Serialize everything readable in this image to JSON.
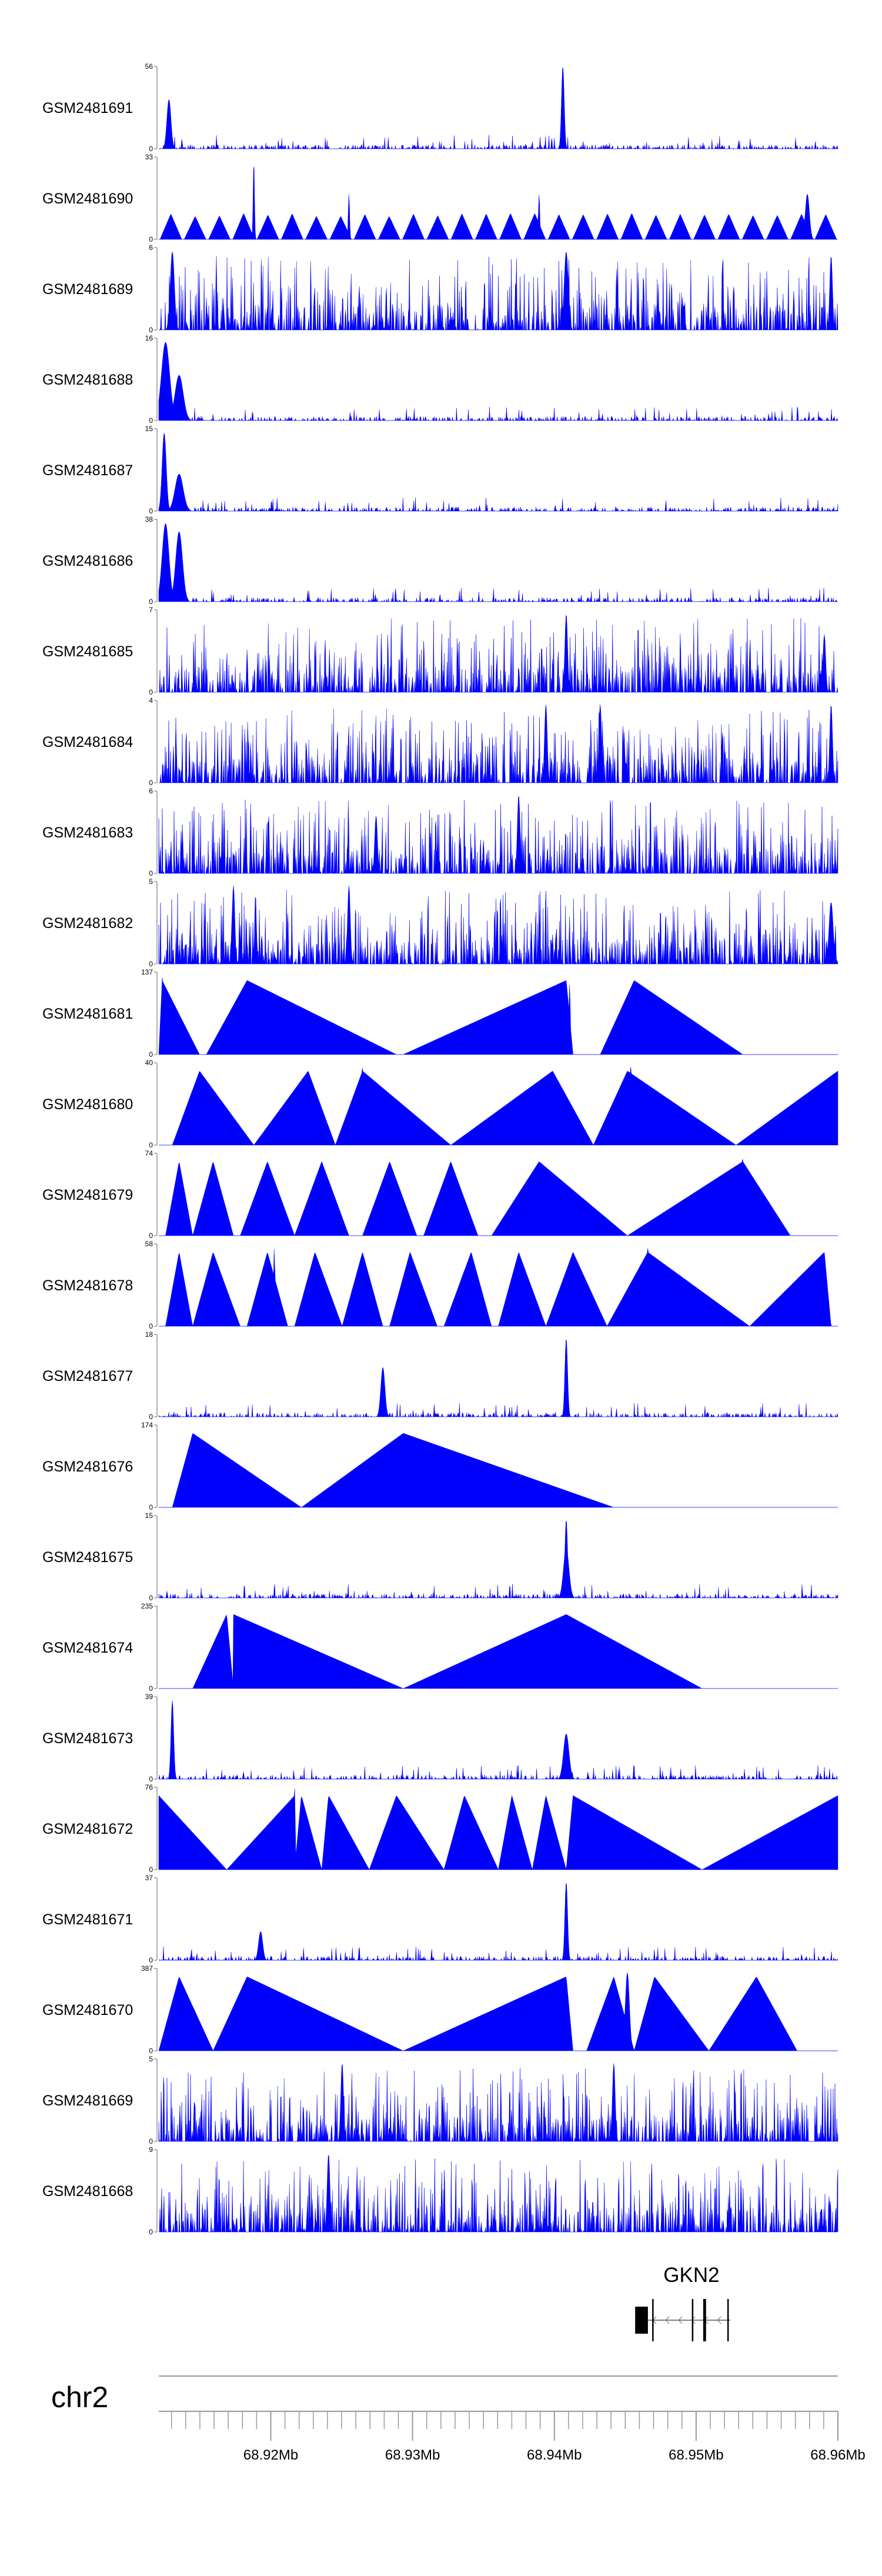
{
  "chart_data": {
    "type": "area",
    "title": "",
    "xlabel": "",
    "ylabel": "",
    "chromosome": "chr2",
    "xlim_mb": [
      68.9121,
      68.96
    ],
    "x_ticks": [
      {
        "value": 68.92,
        "label": "68.92Mb"
      },
      {
        "value": 68.93,
        "label": "68.93Mb"
      },
      {
        "value": 68.94,
        "label": "68.94Mb"
      },
      {
        "value": 68.95,
        "label": "68.95Mb"
      },
      {
        "value": 68.96,
        "label": "68.96Mb"
      }
    ],
    "colors": {
      "fill": "#0000ff",
      "axis": "#999999",
      "text": "#000000"
    },
    "series": [
      {
        "name": "GSM2481691",
        "max": 56,
        "pattern": "noise",
        "peaks": [
          [
            0.015,
            0.6,
            0.003
          ],
          [
            0.595,
            1.0,
            0.002
          ]
        ]
      },
      {
        "name": "GSM2481690",
        "max": 33,
        "pattern": "sparse",
        "peaks": [
          [
            0.14,
            0.95,
            0.001
          ],
          [
            0.28,
            0.55,
            0.001
          ],
          [
            0.56,
            0.55,
            0.001
          ],
          [
            0.955,
            0.55,
            0.003
          ]
        ]
      },
      {
        "name": "GSM2481689",
        "max": 6,
        "pattern": "dense",
        "peaks": [
          [
            0.02,
            0.95,
            0.003
          ],
          [
            0.6,
            0.95,
            0.003
          ],
          [
            0.99,
            0.9,
            0.002
          ]
        ]
      },
      {
        "name": "GSM2481688",
        "max": 16,
        "pattern": "noise",
        "peaks": [
          [
            0.01,
            0.95,
            0.006
          ],
          [
            0.03,
            0.55,
            0.006
          ]
        ]
      },
      {
        "name": "GSM2481687",
        "max": 15,
        "pattern": "noise",
        "peaks": [
          [
            0.008,
            0.95,
            0.003
          ],
          [
            0.03,
            0.45,
            0.006
          ]
        ]
      },
      {
        "name": "GSM2481686",
        "max": 38,
        "pattern": "noise",
        "peaks": [
          [
            0.01,
            0.95,
            0.005
          ],
          [
            0.03,
            0.85,
            0.005
          ]
        ]
      },
      {
        "name": "GSM2481685",
        "max": 7,
        "pattern": "dense",
        "peaks": [
          [
            0.6,
            0.95,
            0.002
          ],
          [
            0.98,
            0.7,
            0.002
          ]
        ]
      },
      {
        "name": "GSM2481684",
        "max": 4,
        "pattern": "dense",
        "peaks": [
          [
            0.57,
            0.95,
            0.002
          ],
          [
            0.65,
            0.95,
            0.002
          ],
          [
            0.99,
            0.95,
            0.002
          ]
        ]
      },
      {
        "name": "GSM2481683",
        "max": 6,
        "pattern": "dense",
        "peaks": [
          [
            0.53,
            0.95,
            0.002
          ],
          [
            0.32,
            0.7,
            0.002
          ]
        ]
      },
      {
        "name": "GSM2481682",
        "max": 5,
        "pattern": "dense",
        "peaks": [
          [
            0.11,
            0.95,
            0.002
          ],
          [
            0.28,
            0.95,
            0.002
          ],
          [
            0.99,
            0.75,
            0.003
          ]
        ]
      },
      {
        "name": "GSM2481681",
        "max": 137,
        "pattern": "triangles",
        "tri": [
          [
            0.0,
            0.005,
            0.06
          ],
          [
            0.07,
            0.13,
            0.35
          ],
          [
            0.36,
            0.6,
            0.61
          ],
          [
            0.65,
            0.7,
            0.86
          ]
        ],
        "peaks": [
          [
            0.605,
            0.85,
            0.001
          ],
          [
            0.13,
            0.55,
            0.001
          ],
          [
            0.005,
            0.95,
            0.001
          ]
        ]
      },
      {
        "name": "GSM2481680",
        "max": 40,
        "pattern": "triangles",
        "tri": [
          [
            0.02,
            0.06,
            0.14
          ],
          [
            0.14,
            0.22,
            0.26
          ],
          [
            0.26,
            0.3,
            0.43
          ],
          [
            0.43,
            0.58,
            0.64
          ],
          [
            0.64,
            0.69,
            0.85
          ],
          [
            0.85,
            1.0,
            1.0
          ]
        ],
        "peaks": [
          [
            0.695,
            0.95,
            0.001
          ],
          [
            0.3,
            0.95,
            0.001
          ]
        ]
      },
      {
        "name": "GSM2481679",
        "max": 74,
        "pattern": "triangles",
        "tri": [
          [
            0.01,
            0.03,
            0.05
          ],
          [
            0.05,
            0.08,
            0.11
          ],
          [
            0.12,
            0.16,
            0.2
          ],
          [
            0.2,
            0.24,
            0.28
          ],
          [
            0.3,
            0.34,
            0.38
          ],
          [
            0.39,
            0.43,
            0.47
          ],
          [
            0.49,
            0.56,
            0.69
          ],
          [
            0.69,
            0.86,
            0.93
          ]
        ],
        "peaks": [
          [
            0.24,
            0.55,
            0.001
          ],
          [
            0.86,
            1.0,
            0.001
          ]
        ]
      },
      {
        "name": "GSM2481678",
        "max": 58,
        "pattern": "triangles",
        "tri": [
          [
            0.01,
            0.03,
            0.05
          ],
          [
            0.05,
            0.08,
            0.12
          ],
          [
            0.13,
            0.16,
            0.19
          ],
          [
            0.2,
            0.23,
            0.27
          ],
          [
            0.27,
            0.3,
            0.33
          ],
          [
            0.34,
            0.37,
            0.41
          ],
          [
            0.42,
            0.46,
            0.49
          ],
          [
            0.5,
            0.53,
            0.57
          ],
          [
            0.57,
            0.61,
            0.66
          ],
          [
            0.66,
            0.72,
            0.87
          ],
          [
            0.87,
            0.98,
            0.99
          ]
        ],
        "peaks": [
          [
            0.17,
            0.95,
            0.001
          ],
          [
            0.72,
            0.95,
            0.001
          ]
        ]
      },
      {
        "name": "GSM2481677",
        "max": 18,
        "pattern": "noise",
        "peaks": [
          [
            0.33,
            0.6,
            0.003
          ],
          [
            0.6,
            0.95,
            0.002
          ]
        ]
      },
      {
        "name": "GSM2481676",
        "max": 174,
        "pattern": "triangles",
        "tri": [
          [
            0.02,
            0.05,
            0.21
          ],
          [
            0.21,
            0.36,
            0.67
          ]
        ],
        "peaks": []
      },
      {
        "name": "GSM2481675",
        "max": 15,
        "pattern": "noise",
        "peaks": [
          [
            0.6,
            0.95,
            0.002
          ],
          [
            0.6,
            0.6,
            0.004
          ]
        ]
      },
      {
        "name": "GSM2481674",
        "max": 235,
        "pattern": "triangles",
        "tri": [
          [
            0.05,
            0.1,
            0.11
          ],
          [
            0.11,
            0.11,
            0.36
          ],
          [
            0.36,
            0.6,
            0.8
          ]
        ],
        "peaks": []
      },
      {
        "name": "GSM2481673",
        "max": 39,
        "pattern": "noise",
        "peaks": [
          [
            0.02,
            0.95,
            0.002
          ],
          [
            0.6,
            0.55,
            0.004
          ]
        ]
      },
      {
        "name": "GSM2481672",
        "max": 76,
        "pattern": "triangles",
        "tri": [
          [
            0.0,
            0.0,
            0.1
          ],
          [
            0.1,
            0.2,
            0.2
          ],
          [
            0.2,
            0.21,
            0.24
          ],
          [
            0.24,
            0.25,
            0.31
          ],
          [
            0.31,
            0.35,
            0.42
          ],
          [
            0.42,
            0.45,
            0.5
          ],
          [
            0.5,
            0.52,
            0.55
          ],
          [
            0.55,
            0.57,
            0.6
          ],
          [
            0.6,
            0.61,
            0.8
          ],
          [
            0.8,
            1.0,
            1.0
          ]
        ],
        "peaks": [
          [
            0.2,
            1.0,
            0.001
          ],
          [
            1.0,
            0.9,
            0.001
          ]
        ]
      },
      {
        "name": "GSM2481671",
        "max": 37,
        "pattern": "noise",
        "peaks": [
          [
            0.6,
            0.95,
            0.002
          ],
          [
            0.15,
            0.35,
            0.003
          ]
        ]
      },
      {
        "name": "GSM2481670",
        "max": 387,
        "pattern": "triangles",
        "tri": [
          [
            0.0,
            0.03,
            0.08
          ],
          [
            0.08,
            0.13,
            0.36
          ],
          [
            0.36,
            0.6,
            0.61
          ],
          [
            0.63,
            0.67,
            0.7
          ],
          [
            0.7,
            0.73,
            0.81
          ],
          [
            0.81,
            0.88,
            0.94
          ]
        ],
        "peaks": [
          [
            0.69,
            0.95,
            0.003
          ],
          [
            0.88,
            0.3,
            0.001
          ]
        ]
      },
      {
        "name": "GSM2481669",
        "max": 5,
        "pattern": "dense",
        "peaks": [
          [
            0.27,
            0.95,
            0.002
          ],
          [
            0.67,
            0.95,
            0.002
          ]
        ]
      },
      {
        "name": "GSM2481668",
        "max": 9,
        "pattern": "dense",
        "peaks": [
          [
            0.25,
            0.95,
            0.002
          ]
        ]
      }
    ],
    "gene": {
      "name": "GKN2",
      "strand": "-",
      "exons": [
        [
          68.9457,
          68.9466
        ],
        [
          68.9469,
          68.947
        ],
        [
          68.9497,
          68.9498
        ],
        [
          68.9505,
          68.9507
        ],
        [
          68.9522,
          68.9523
        ]
      ],
      "span": [
        68.9457,
        68.9524
      ]
    }
  }
}
